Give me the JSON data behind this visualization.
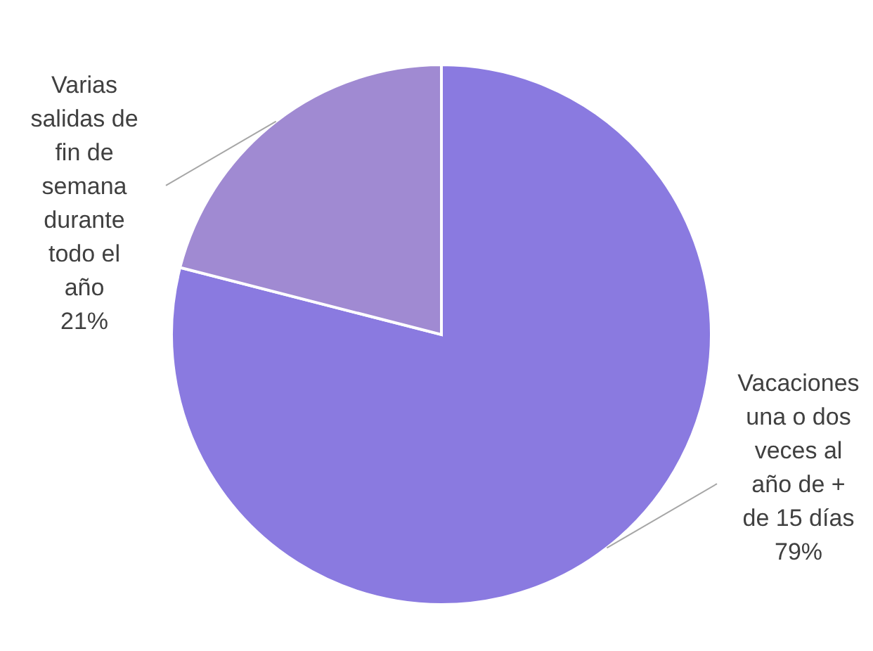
{
  "chart_data": {
    "type": "pie",
    "categories": [
      "Vacaciones una o dos veces al año de + de 15 días",
      "Varias salidas de fin de semana durante todo el año"
    ],
    "values": [
      79,
      21
    ],
    "value_labels": [
      "79%",
      "21%"
    ],
    "colors": [
      "#8a7ae0",
      "#a08ad2"
    ],
    "legend": false
  }
}
